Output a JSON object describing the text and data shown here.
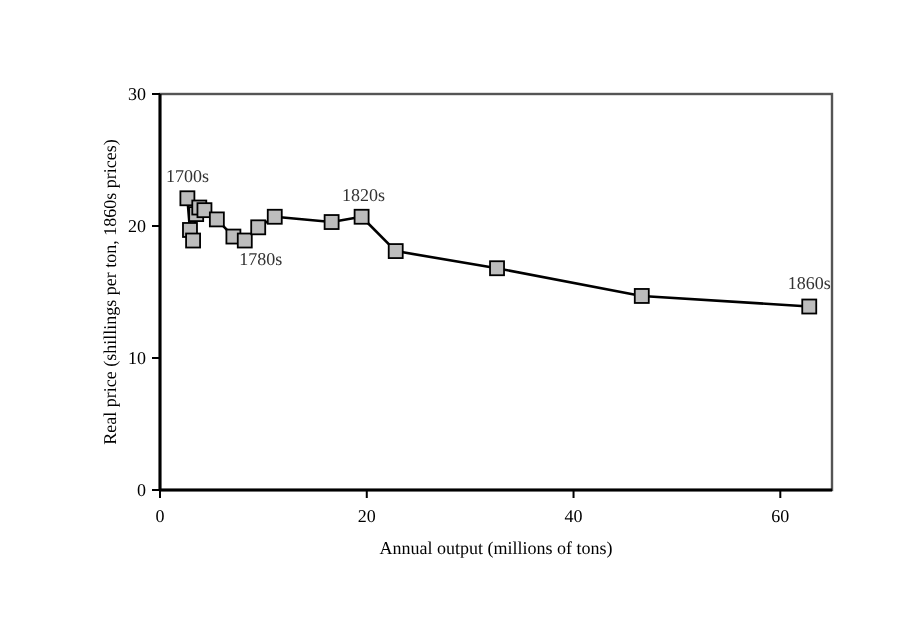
{
  "chart_data": {
    "type": "line",
    "xlabel": "Annual output (millions of tons)",
    "ylabel": "Real price (shillings per ton, 1860s prices)",
    "xlim": [
      0,
      65
    ],
    "xticks": [
      0,
      20,
      40,
      60
    ],
    "ylim": [
      0,
      30
    ],
    "yticks": [
      0,
      10,
      20,
      30
    ],
    "marker": "square",
    "series": [
      {
        "color": "#000000",
        "x": [
          2.65,
          2.9,
          3.2,
          3.5,
          3.8,
          4.3,
          5.5,
          7.1,
          8.2,
          9.5,
          11.1,
          16.6,
          19.5,
          22.8,
          32.6,
          46.6,
          62.8
        ],
        "values": [
          22.1,
          19.7,
          18.9,
          20.9,
          21.4,
          21.2,
          20.5,
          19.2,
          18.9,
          19.9,
          20.7,
          20.3,
          20.7,
          18.1,
          16.8,
          14.7,
          13.9
        ]
      }
    ],
    "annotations": [
      {
        "text": "1700s",
        "x": 2.65,
        "y": 22.1
      },
      {
        "text": "1780s",
        "x": 8.2,
        "y": 18.9
      },
      {
        "text": "1820s",
        "x": 19.5,
        "y": 20.7
      },
      {
        "text": "1860s",
        "x": 62.8,
        "y": 13.9
      }
    ]
  }
}
